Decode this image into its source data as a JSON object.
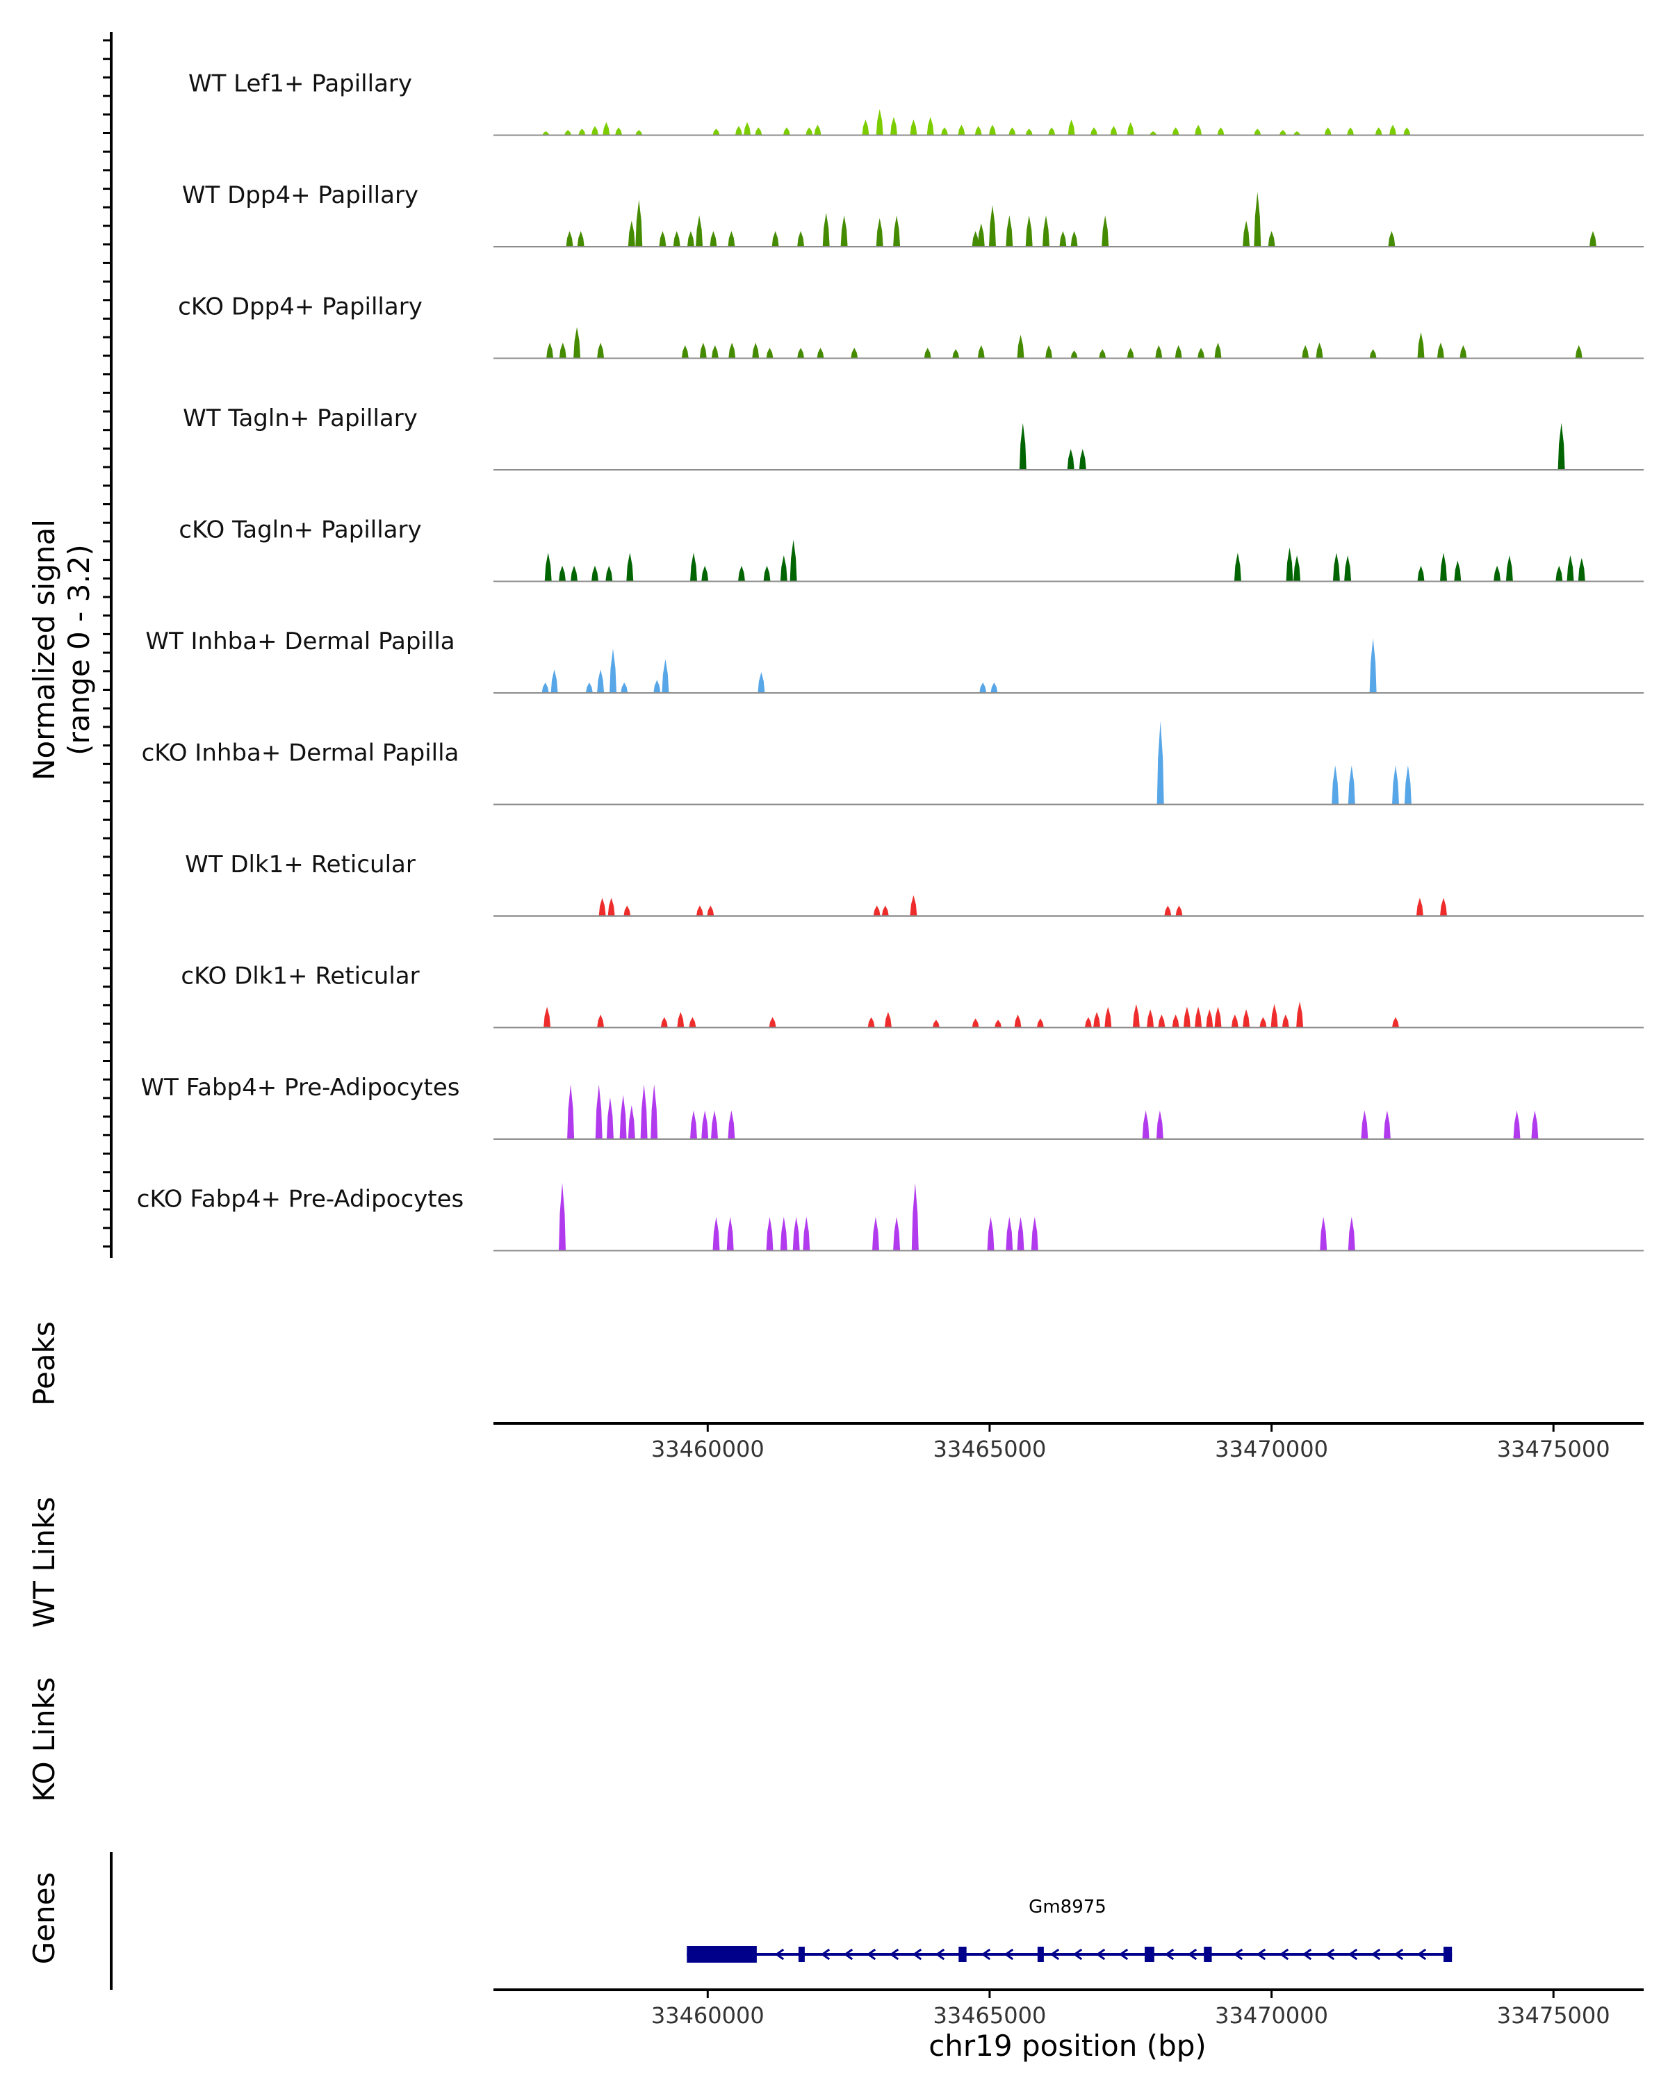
{
  "chart_data": {
    "type": "coverage-track",
    "y_axis_label": [
      "Normalized signal",
      "(range 0 - 3.2)"
    ],
    "y_range": [
      0,
      3.2
    ],
    "x_axis_label": "chr19 position (bp)",
    "x_range": [
      33456200,
      33476600
    ],
    "x_ticks": [
      33460000,
      33465000,
      33470000,
      33475000
    ],
    "x_tick_labels": [
      "33460000",
      "33465000",
      "33470000",
      "33475000"
    ],
    "section_labels": {
      "peaks": "Peaks",
      "wt_links": "WT Links",
      "ko_links": "KO Links",
      "genes": "Genes"
    },
    "tracks": [
      {
        "name": "WT Lef1+ Papillary",
        "color": "#7ccd00",
        "peaks": [
          [
            33457130,
            0.15
          ],
          [
            33457520,
            0.2
          ],
          [
            33457770,
            0.25
          ],
          [
            33458000,
            0.35
          ],
          [
            33458200,
            0.5
          ],
          [
            33458420,
            0.3
          ],
          [
            33458780,
            0.2
          ],
          [
            33460150,
            0.25
          ],
          [
            33460550,
            0.35
          ],
          [
            33460700,
            0.5
          ],
          [
            33460900,
            0.3
          ],
          [
            33461400,
            0.3
          ],
          [
            33461800,
            0.3
          ],
          [
            33461950,
            0.4
          ],
          [
            33462800,
            0.6
          ],
          [
            33463050,
            1.0
          ],
          [
            33463300,
            0.7
          ],
          [
            33463650,
            0.6
          ],
          [
            33463950,
            0.7
          ],
          [
            33464200,
            0.3
          ],
          [
            33464500,
            0.4
          ],
          [
            33464800,
            0.35
          ],
          [
            33465050,
            0.4
          ],
          [
            33465400,
            0.3
          ],
          [
            33465700,
            0.25
          ],
          [
            33466100,
            0.3
          ],
          [
            33466450,
            0.6
          ],
          [
            33466850,
            0.3
          ],
          [
            33467200,
            0.35
          ],
          [
            33467500,
            0.5
          ],
          [
            33467900,
            0.15
          ],
          [
            33468300,
            0.3
          ],
          [
            33468700,
            0.4
          ],
          [
            33469100,
            0.3
          ],
          [
            33469750,
            0.25
          ],
          [
            33470200,
            0.2
          ],
          [
            33470450,
            0.15
          ],
          [
            33471000,
            0.3
          ],
          [
            33471400,
            0.3
          ],
          [
            33471900,
            0.3
          ],
          [
            33472150,
            0.4
          ],
          [
            33472400,
            0.3
          ]
        ]
      },
      {
        "name": "WT Dpp4+ Papillary",
        "color": "#458b00",
        "peaks": [
          [
            33457550,
            0.6
          ],
          [
            33457750,
            0.6
          ],
          [
            33458650,
            1.0
          ],
          [
            33458780,
            1.8
          ],
          [
            33459200,
            0.6
          ],
          [
            33459450,
            0.6
          ],
          [
            33459700,
            0.6
          ],
          [
            33459850,
            1.2
          ],
          [
            33460100,
            0.6
          ],
          [
            33460420,
            0.6
          ],
          [
            33461200,
            0.6
          ],
          [
            33461650,
            0.6
          ],
          [
            33462100,
            1.3
          ],
          [
            33462420,
            1.2
          ],
          [
            33463050,
            1.1
          ],
          [
            33463350,
            1.2
          ],
          [
            33464750,
            0.6
          ],
          [
            33464850,
            0.9
          ],
          [
            33465050,
            1.6
          ],
          [
            33465350,
            1.2
          ],
          [
            33465700,
            1.2
          ],
          [
            33466000,
            1.2
          ],
          [
            33466300,
            0.6
          ],
          [
            33466500,
            0.6
          ],
          [
            33467050,
            1.2
          ],
          [
            33469550,
            1.0
          ],
          [
            33469750,
            2.1
          ],
          [
            33470000,
            0.6
          ],
          [
            33472130,
            0.6
          ],
          [
            33475700,
            0.6
          ]
        ]
      },
      {
        "name": "cKO Dpp4+ Papillary",
        "color": "#458b00",
        "peaks": [
          [
            33457200,
            0.6
          ],
          [
            33457430,
            0.6
          ],
          [
            33457680,
            1.2
          ],
          [
            33458100,
            0.6
          ],
          [
            33459600,
            0.5
          ],
          [
            33459920,
            0.6
          ],
          [
            33460130,
            0.5
          ],
          [
            33460430,
            0.6
          ],
          [
            33460850,
            0.6
          ],
          [
            33461100,
            0.4
          ],
          [
            33461650,
            0.4
          ],
          [
            33462000,
            0.4
          ],
          [
            33462600,
            0.4
          ],
          [
            33463900,
            0.4
          ],
          [
            33464400,
            0.35
          ],
          [
            33464850,
            0.5
          ],
          [
            33465550,
            0.9
          ],
          [
            33466050,
            0.5
          ],
          [
            33466500,
            0.3
          ],
          [
            33467000,
            0.35
          ],
          [
            33467500,
            0.4
          ],
          [
            33468000,
            0.5
          ],
          [
            33468350,
            0.5
          ],
          [
            33468750,
            0.4
          ],
          [
            33469050,
            0.6
          ],
          [
            33470600,
            0.5
          ],
          [
            33470850,
            0.6
          ],
          [
            33471800,
            0.35
          ],
          [
            33472650,
            1.0
          ],
          [
            33473000,
            0.6
          ],
          [
            33473400,
            0.5
          ],
          [
            33475450,
            0.5
          ]
        ]
      },
      {
        "name": "WT Tagln+ Papillary",
        "color": "#006400",
        "peaks": [
          [
            33465590,
            1.8
          ],
          [
            33466440,
            0.8
          ],
          [
            33466650,
            0.8
          ],
          [
            33475140,
            1.8
          ]
        ]
      },
      {
        "name": "cKO Tagln+ Papillary",
        "color": "#006400",
        "peaks": [
          [
            33457170,
            1.1
          ],
          [
            33457420,
            0.6
          ],
          [
            33457630,
            0.6
          ],
          [
            33458000,
            0.6
          ],
          [
            33458250,
            0.6
          ],
          [
            33458620,
            1.1
          ],
          [
            33459750,
            1.1
          ],
          [
            33459950,
            0.6
          ],
          [
            33460600,
            0.6
          ],
          [
            33461050,
            0.6
          ],
          [
            33461520,
            1.6
          ],
          [
            33461350,
            1.0
          ],
          [
            33469400,
            1.1
          ],
          [
            33470320,
            1.3
          ],
          [
            33470450,
            1.0
          ],
          [
            33471150,
            1.1
          ],
          [
            33471350,
            1.0
          ],
          [
            33472650,
            0.6
          ],
          [
            33473050,
            1.1
          ],
          [
            33473300,
            0.8
          ],
          [
            33474000,
            0.6
          ],
          [
            33474220,
            1.0
          ],
          [
            33475100,
            0.6
          ],
          [
            33475300,
            1.0
          ],
          [
            33475500,
            0.9
          ]
        ]
      },
      {
        "name": "WT Inhba+ Dermal Papilla",
        "color": "#56a6e8",
        "peaks": [
          [
            33457120,
            0.4
          ],
          [
            33457280,
            0.9
          ],
          [
            33457900,
            0.4
          ],
          [
            33458100,
            0.9
          ],
          [
            33458320,
            1.7
          ],
          [
            33458520,
            0.4
          ],
          [
            33459100,
            0.5
          ],
          [
            33459250,
            1.3
          ],
          [
            33460950,
            0.8
          ],
          [
            33464880,
            0.4
          ],
          [
            33465080,
            0.4
          ],
          [
            33471800,
            2.1
          ]
        ]
      },
      {
        "name": "cKO Inhba+ Dermal Papilla",
        "color": "#56a6e8",
        "peaks": [
          [
            33468030,
            3.2
          ],
          [
            33471130,
            1.5
          ],
          [
            33471420,
            1.5
          ],
          [
            33472200,
            1.5
          ],
          [
            33472420,
            1.5
          ]
        ]
      },
      {
        "name": "WT Dlk1+ Reticular",
        "color": "#ee2c2c",
        "peaks": [
          [
            33458130,
            0.7
          ],
          [
            33458290,
            0.7
          ],
          [
            33458570,
            0.4
          ],
          [
            33459860,
            0.4
          ],
          [
            33460050,
            0.4
          ],
          [
            33463000,
            0.4
          ],
          [
            33463150,
            0.4
          ],
          [
            33463650,
            0.8
          ],
          [
            33468160,
            0.4
          ],
          [
            33468360,
            0.4
          ],
          [
            33472630,
            0.7
          ],
          [
            33473050,
            0.7
          ]
        ]
      },
      {
        "name": "cKO Dlk1+ Reticular",
        "color": "#ee2c2c",
        "peaks": [
          [
            33457150,
            0.8
          ],
          [
            33458100,
            0.5
          ],
          [
            33459230,
            0.4
          ],
          [
            33459520,
            0.6
          ],
          [
            33459730,
            0.4
          ],
          [
            33461150,
            0.4
          ],
          [
            33462900,
            0.4
          ],
          [
            33463200,
            0.6
          ],
          [
            33464050,
            0.3
          ],
          [
            33464750,
            0.35
          ],
          [
            33465150,
            0.3
          ],
          [
            33465500,
            0.5
          ],
          [
            33465900,
            0.35
          ],
          [
            33466750,
            0.4
          ],
          [
            33466900,
            0.6
          ],
          [
            33467100,
            0.8
          ],
          [
            33467600,
            0.9
          ],
          [
            33467850,
            0.7
          ],
          [
            33468050,
            0.5
          ],
          [
            33468300,
            0.5
          ],
          [
            33468500,
            0.8
          ],
          [
            33468700,
            0.8
          ],
          [
            33468900,
            0.7
          ],
          [
            33469050,
            0.8
          ],
          [
            33469350,
            0.5
          ],
          [
            33469550,
            0.7
          ],
          [
            33469850,
            0.4
          ],
          [
            33470050,
            0.9
          ],
          [
            33470250,
            0.5
          ],
          [
            33470500,
            1.0
          ],
          [
            33472200,
            0.4
          ]
        ]
      },
      {
        "name": "WT Fabp4+ Pre-Adipocytes",
        "color": "#b23aee",
        "peaks": [
          [
            33457570,
            2.1
          ],
          [
            33458070,
            2.1
          ],
          [
            33458270,
            1.6
          ],
          [
            33458500,
            1.7
          ],
          [
            33458650,
            1.3
          ],
          [
            33458870,
            2.1
          ],
          [
            33459050,
            2.1
          ],
          [
            33459750,
            1.1
          ],
          [
            33459950,
            1.1
          ],
          [
            33460120,
            1.1
          ],
          [
            33460420,
            1.1
          ],
          [
            33467770,
            1.1
          ],
          [
            33468020,
            1.1
          ],
          [
            33471650,
            1.1
          ],
          [
            33472050,
            1.1
          ],
          [
            33474350,
            1.1
          ],
          [
            33474670,
            1.1
          ]
        ]
      },
      {
        "name": "cKO Fabp4+ Pre-Adipocytes",
        "color": "#b23aee",
        "peaks": [
          [
            33457420,
            2.6
          ],
          [
            33460150,
            1.3
          ],
          [
            33460400,
            1.3
          ],
          [
            33461100,
            1.3
          ],
          [
            33461350,
            1.3
          ],
          [
            33461570,
            1.3
          ],
          [
            33461750,
            1.3
          ],
          [
            33462980,
            1.3
          ],
          [
            33463350,
            1.3
          ],
          [
            33463680,
            2.6
          ],
          [
            33465020,
            1.3
          ],
          [
            33465350,
            1.3
          ],
          [
            33465550,
            1.3
          ],
          [
            33465800,
            1.3
          ],
          [
            33470920,
            1.3
          ],
          [
            33471420,
            1.3
          ]
        ]
      }
    ],
    "gene": {
      "name": "Gm8975",
      "strand": "-",
      "start": 33459630,
      "end": 33473200,
      "exons": [
        [
          33459630,
          33460870
        ],
        [
          33461610,
          33461700
        ],
        [
          33464450,
          33464590
        ],
        [
          33465850,
          33465940
        ],
        [
          33467750,
          33467920
        ],
        [
          33468800,
          33468940
        ],
        [
          33473050,
          33473200
        ]
      ],
      "color": "#00008b"
    }
  }
}
